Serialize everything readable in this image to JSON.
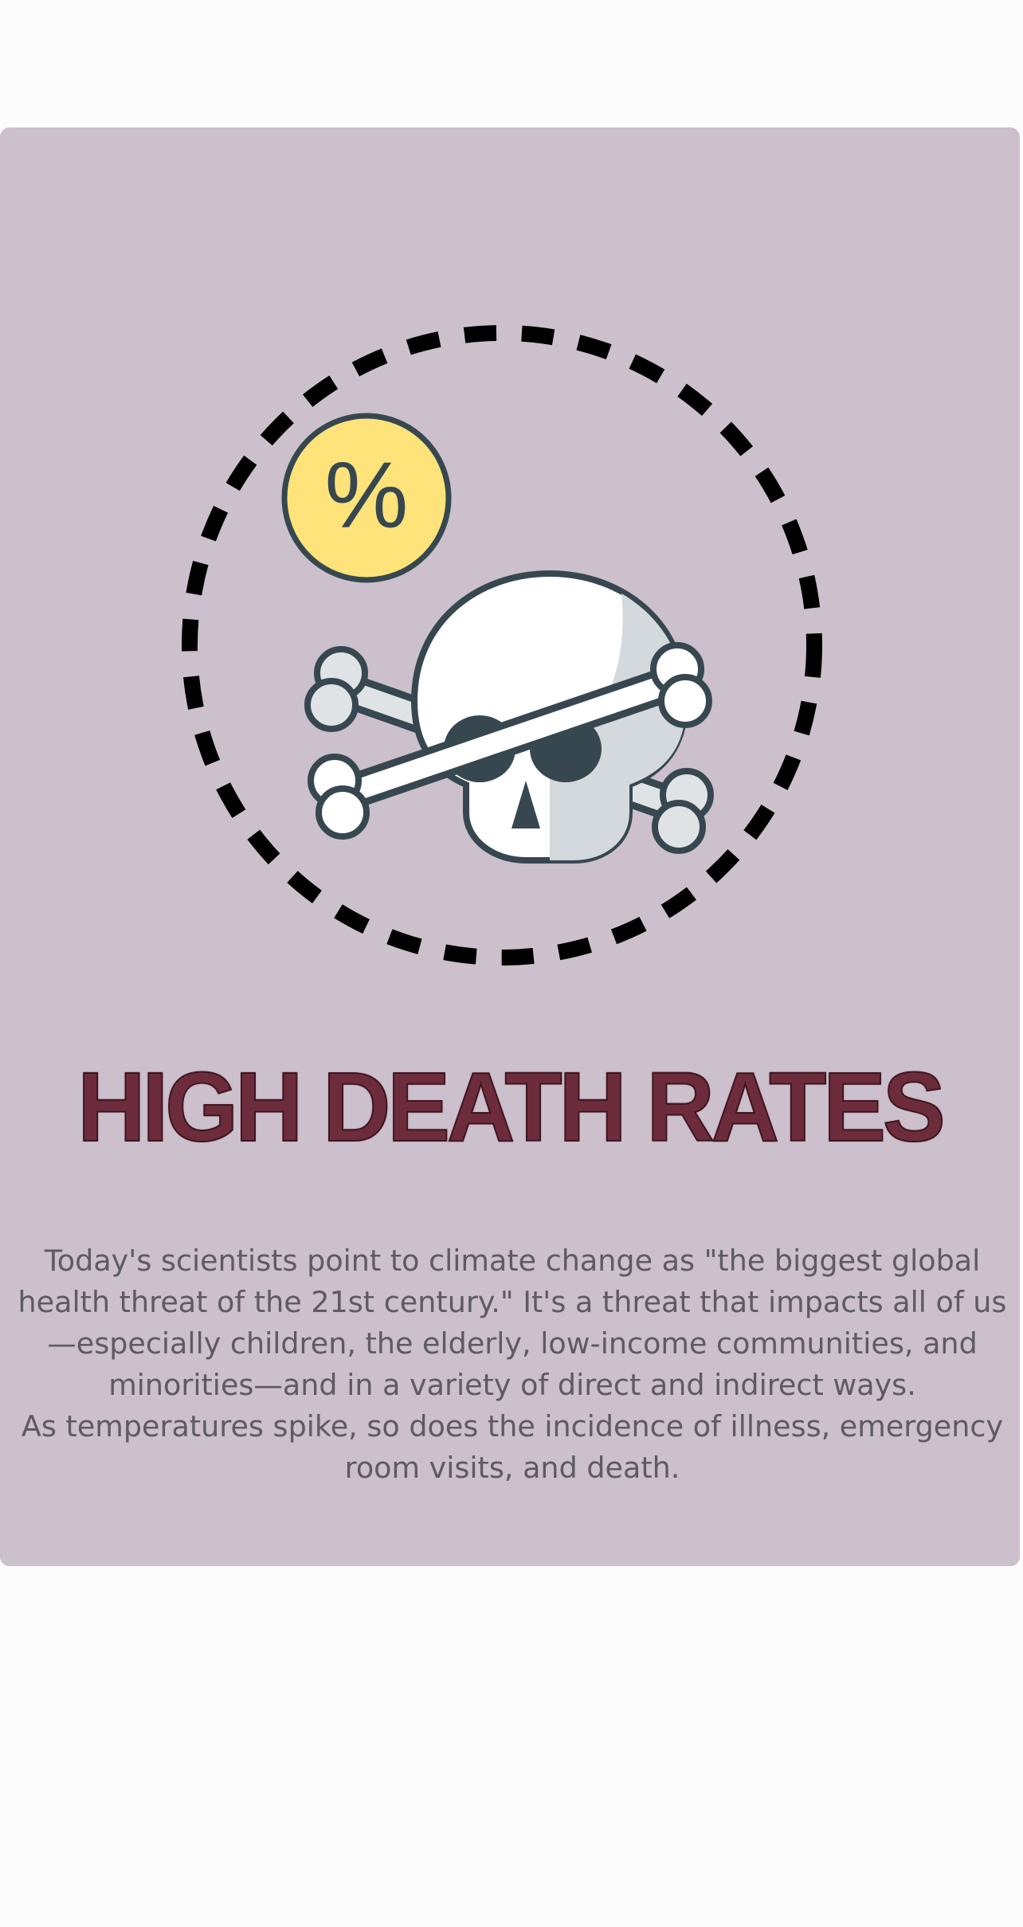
{
  "panel": {
    "background": "#cbc0cb",
    "illustration": {
      "icons": [
        "dashed-circle-icon",
        "percent-badge-icon",
        "skull-crossbones-icon"
      ],
      "badge_text": "%",
      "badge_color": "#fde37a",
      "outline_color": "#37474f"
    },
    "title": "HIGH DEATH RATES",
    "title_color": "#6d2c3c",
    "paragraphs": [
      "Today's scientists point to climate change as \"the biggest global health threat of the 21st century.\" It's a threat that impacts all of us—especially children, the elderly, low-income  communities, and minorities—and in a variety of direct and indirect ways.",
      "As temperatures spike, so does the incidence of illness, emergency room visits, and death."
    ]
  }
}
